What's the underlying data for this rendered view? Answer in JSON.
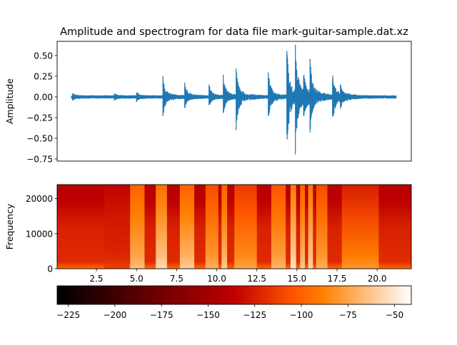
{
  "chart_data": [
    {
      "type": "line",
      "title": "Amplitude and spectrogram for data file mark-guitar-sample.dat.xz",
      "xlabel": "",
      "ylabel": "Amplitude",
      "xlim": [
        0.05,
        22.13
      ],
      "ylim": [
        -0.776,
        0.672
      ],
      "yticks": [
        0.5,
        0.25,
        0.0,
        -0.25,
        -0.5,
        -0.75
      ],
      "ytick_labels": [
        "0.50",
        "0.25",
        "0.00",
        "−0.25",
        "−0.50",
        "−0.75"
      ],
      "series_color": "#1f77b4",
      "signal_span": [
        0.95,
        21.2
      ],
      "noise_floor": 0.02,
      "transients": [
        {
          "t": 1.0,
          "pos": 0.03,
          "neg": -0.03
        },
        {
          "t": 3.6,
          "pos": 0.03,
          "neg": -0.03
        },
        {
          "t": 5.0,
          "pos": 0.04,
          "neg": -0.04
        },
        {
          "t": 6.64,
          "pos": 0.22,
          "neg": -0.21
        },
        {
          "t": 8.0,
          "pos": 0.15,
          "neg": -0.12
        },
        {
          "t": 9.5,
          "pos": 0.15,
          "neg": -0.12
        },
        {
          "t": 10.4,
          "pos": 0.23,
          "neg": -0.2
        },
        {
          "t": 11.2,
          "pos": 0.33,
          "neg": -0.38
        },
        {
          "t": 13.2,
          "pos": 0.3,
          "neg": -0.27
        },
        {
          "t": 14.35,
          "pos": 0.62,
          "neg": -0.71
        },
        {
          "t": 14.9,
          "pos": 0.55,
          "neg": -0.57
        },
        {
          "t": 15.4,
          "pos": 0.23,
          "neg": -0.22
        },
        {
          "t": 15.8,
          "pos": 0.45,
          "neg": -0.42
        },
        {
          "t": 17.2,
          "pos": 0.27,
          "neg": -0.32
        },
        {
          "t": 17.7,
          "pos": 0.12,
          "neg": -0.1
        }
      ]
    },
    {
      "type": "heatmap",
      "xlabel": "",
      "ylabel": "Frequency",
      "xlim": [
        0.05,
        22.13
      ],
      "ylim": [
        0,
        24000
      ],
      "xticks": [
        2.5,
        5.0,
        7.5,
        10.0,
        12.5,
        15.0,
        17.5,
        20.0
      ],
      "xtick_labels": [
        "2.5",
        "5.0",
        "7.5",
        "10.0",
        "12.5",
        "15.0",
        "17.5",
        "20.0"
      ],
      "yticks": [
        0,
        10000,
        20000
      ],
      "ytick_labels": [
        "0",
        "10000",
        "20000"
      ],
      "colormap": "gist_heat",
      "background_db": {
        "top": -140,
        "bottom": -120,
        "floor": -95
      },
      "bands": [
        {
          "start": 3.0,
          "end": 4.55,
          "top_db": -135,
          "bottom_db": -112
        },
        {
          "start": 4.6,
          "end": 5.5,
          "top_db": -100,
          "bottom_db": -65
        },
        {
          "start": 6.2,
          "end": 6.9,
          "top_db": -95,
          "bottom_db": -55
        },
        {
          "start": 7.7,
          "end": 8.6,
          "top_db": -100,
          "bottom_db": -60
        },
        {
          "start": 9.3,
          "end": 10.1,
          "top_db": -108,
          "bottom_db": -70
        },
        {
          "start": 10.3,
          "end": 10.65,
          "top_db": -100,
          "bottom_db": -60
        },
        {
          "start": 11.1,
          "end": 12.5,
          "top_db": -115,
          "bottom_db": -75
        },
        {
          "start": 13.4,
          "end": 14.3,
          "top_db": -105,
          "bottom_db": -68
        },
        {
          "start": 14.6,
          "end": 14.95,
          "top_db": -90,
          "bottom_db": -50
        },
        {
          "start": 15.2,
          "end": 15.5,
          "top_db": -100,
          "bottom_db": -60
        },
        {
          "start": 15.7,
          "end": 16.0,
          "top_db": -92,
          "bottom_db": -55
        },
        {
          "start": 16.2,
          "end": 16.9,
          "top_db": -108,
          "bottom_db": -70
        },
        {
          "start": 17.8,
          "end": 20.1,
          "top_db": -125,
          "bottom_db": -80
        }
      ]
    },
    {
      "type": "colorbar",
      "colormap": "gist_heat",
      "range": [
        -231,
        -41
      ],
      "ticks": [
        -225,
        -200,
        -175,
        -150,
        -125,
        -100,
        -75,
        -50
      ],
      "tick_labels": [
        "−225",
        "−200",
        "−175",
        "−150",
        "−125",
        "−100",
        "−75",
        "−50"
      ]
    }
  ]
}
